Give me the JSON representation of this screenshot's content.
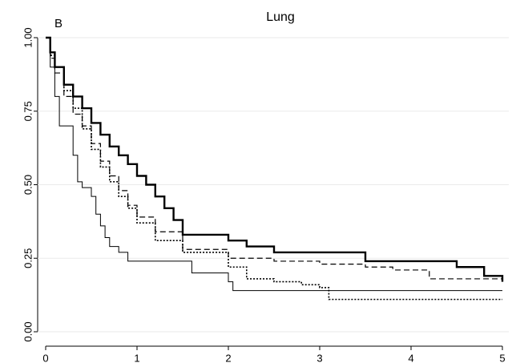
{
  "chart_data": {
    "type": "step",
    "title": "Lung",
    "annotation": "B",
    "xlim": [
      0,
      5
    ],
    "xticks": [
      0,
      1,
      2,
      3,
      4,
      5
    ],
    "ylim": [
      0,
      1
    ],
    "yticks": [
      {
        "value": 0,
        "label": "0.00"
      },
      {
        "value": 0.25,
        "label": "0.25"
      },
      {
        "value": 0.5,
        "label": "0.50"
      },
      {
        "value": 0.75,
        "label": "0.75"
      },
      {
        "value": 1,
        "label": "1.00"
      }
    ],
    "grid": true,
    "series": [
      {
        "color": "#000000",
        "line_style": "bold",
        "x": [
          0,
          0.05,
          0.1,
          0.2,
          0.3,
          0.4,
          0.5,
          0.6,
          0.7,
          0.8,
          0.9,
          1.0,
          1.1,
          1.2,
          1.3,
          1.4,
          1.5,
          1.7,
          2.0,
          2.2,
          2.5,
          3.0,
          3.5,
          4.0,
          4.5,
          4.8,
          5.0
        ],
        "values": [
          1.0,
          0.95,
          0.9,
          0.84,
          0.8,
          0.76,
          0.71,
          0.67,
          0.63,
          0.6,
          0.57,
          0.53,
          0.5,
          0.46,
          0.42,
          0.38,
          0.33,
          0.33,
          0.31,
          0.29,
          0.27,
          0.27,
          0.24,
          0.24,
          0.22,
          0.19,
          0.17
        ]
      },
      {
        "color": "#000000",
        "line_style": "dashed",
        "x": [
          0,
          0.05,
          0.1,
          0.2,
          0.3,
          0.4,
          0.5,
          0.6,
          0.7,
          0.8,
          0.9,
          1.0,
          1.2,
          1.5,
          2.0,
          2.5,
          3.0,
          3.5,
          3.8,
          4.2,
          5.0
        ],
        "values": [
          1.0,
          0.93,
          0.88,
          0.8,
          0.74,
          0.7,
          0.64,
          0.58,
          0.53,
          0.48,
          0.43,
          0.39,
          0.34,
          0.28,
          0.25,
          0.24,
          0.23,
          0.22,
          0.21,
          0.18,
          0.18
        ]
      },
      {
        "color": "#000000",
        "line_style": "dotted",
        "x": [
          0,
          0.05,
          0.1,
          0.2,
          0.3,
          0.4,
          0.5,
          0.6,
          0.7,
          0.8,
          0.9,
          1.0,
          1.2,
          1.5,
          2.0,
          2.2,
          2.5,
          2.8,
          3.0,
          3.1,
          4.0,
          5.0
        ],
        "values": [
          1.0,
          0.94,
          0.9,
          0.82,
          0.76,
          0.69,
          0.62,
          0.56,
          0.51,
          0.46,
          0.42,
          0.37,
          0.31,
          0.27,
          0.22,
          0.18,
          0.17,
          0.16,
          0.15,
          0.11,
          0.11,
          0.11
        ]
      },
      {
        "color": "#000000",
        "line_style": "solid",
        "x": [
          0,
          0.05,
          0.1,
          0.15,
          0.3,
          0.35,
          0.4,
          0.5,
          0.55,
          0.6,
          0.65,
          0.7,
          0.8,
          0.9,
          1.0,
          1.6,
          2.0,
          2.05,
          5.0
        ],
        "values": [
          1.0,
          0.9,
          0.8,
          0.7,
          0.6,
          0.51,
          0.49,
          0.46,
          0.4,
          0.36,
          0.32,
          0.29,
          0.27,
          0.24,
          0.24,
          0.2,
          0.17,
          0.14,
          0.14
        ]
      }
    ]
  }
}
